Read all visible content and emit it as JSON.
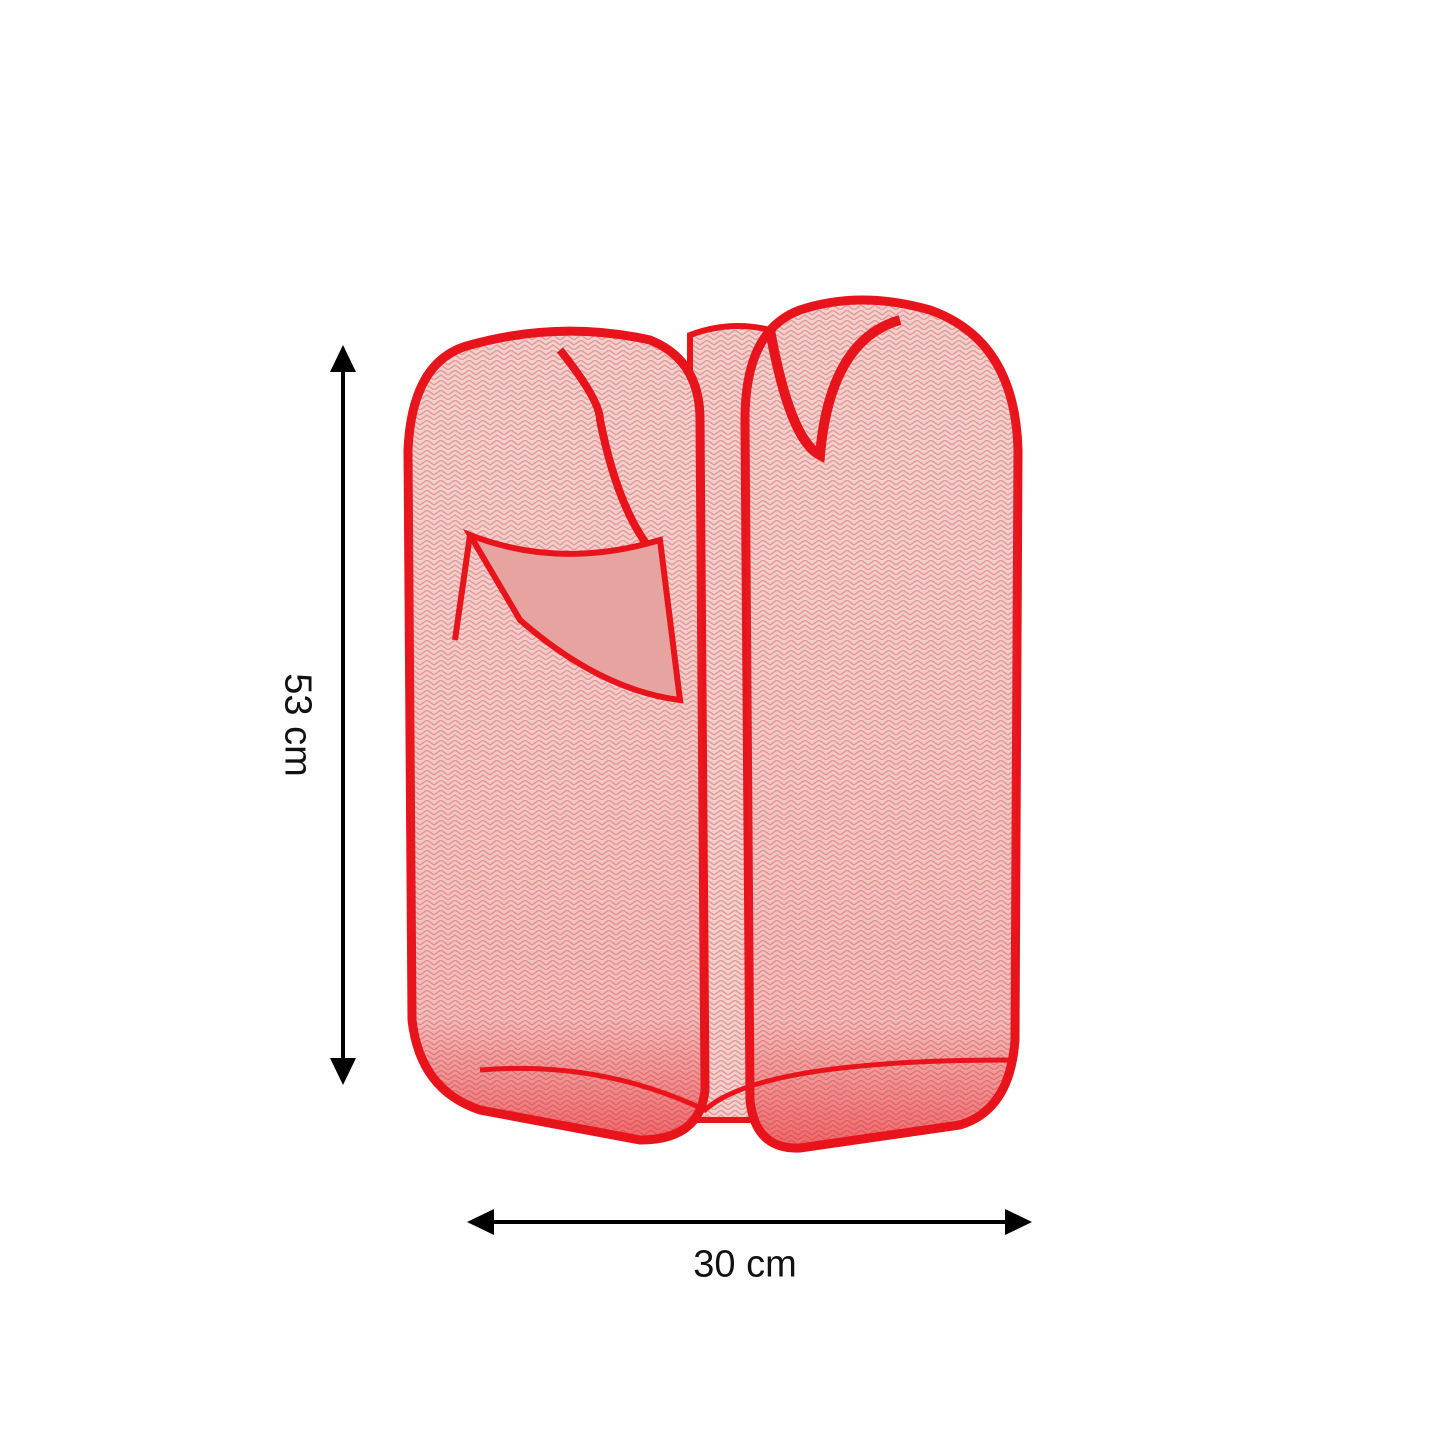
{
  "dimensions": {
    "height_label": "53 cm",
    "width_label": "30 cm"
  },
  "product": {
    "name_icon": "pop-up-mesh-laundry-basket",
    "color": "#e8131b",
    "mesh_color": "#f1c6c4"
  },
  "arrow_color": "#000000"
}
